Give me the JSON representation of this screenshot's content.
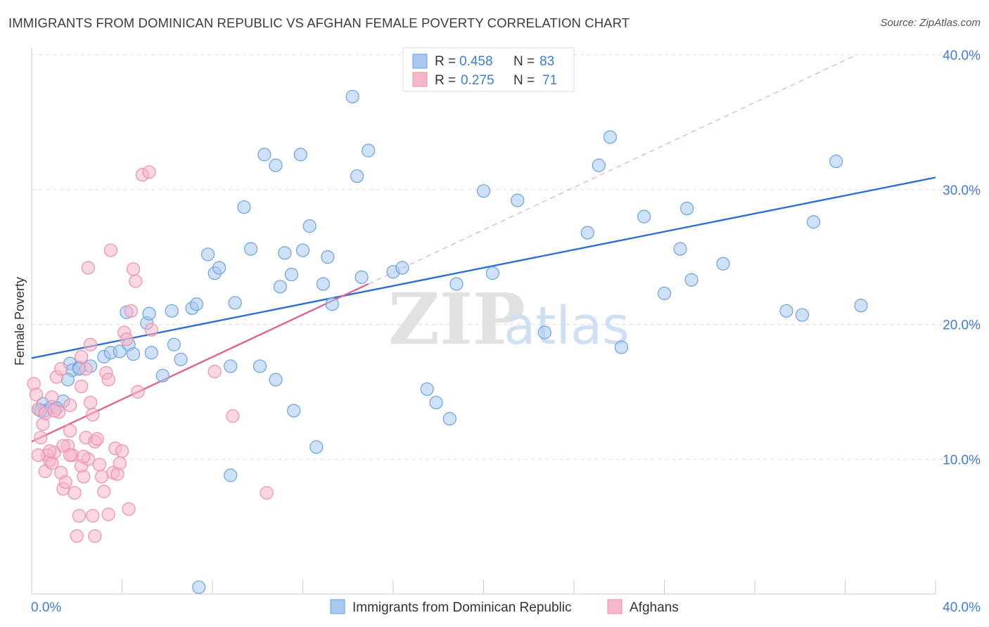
{
  "title": "IMMIGRANTS FROM DOMINICAN REPUBLIC VS AFGHAN FEMALE POVERTY CORRELATION CHART",
  "source": "Source: ZipAtlas.com",
  "watermark": {
    "zip": "ZIP",
    "atlas": "atlas"
  },
  "legend_top": [
    {
      "r_label": "R = ",
      "r_value": "0.458",
      "n_label": "N = ",
      "n_value": "83",
      "color": "#a8c8f0"
    },
    {
      "r_label": "R = ",
      "r_value": "0.275",
      "n_label": "N = ",
      "n_value": "71",
      "color": "#f7b7cb"
    }
  ],
  "legend_bottom": [
    {
      "label": "Immigrants from Dominican Republic",
      "color": "#a8c8f0"
    },
    {
      "label": "Afghans",
      "color": "#f7b7cb"
    }
  ],
  "chart_data": {
    "type": "scatter",
    "title": "IMMIGRANTS FROM DOMINICAN REPUBLIC VS AFGHAN FEMALE POVERTY CORRELATION CHART",
    "xlabel": "",
    "ylabel": "Female Poverty",
    "xlim": [
      0,
      40
    ],
    "ylim": [
      0,
      40
    ],
    "x_tick_labels": [
      "0.0%",
      "40.0%"
    ],
    "y_ticks": [
      10,
      20,
      30,
      40
    ],
    "y_tick_labels": [
      "10.0%",
      "20.0%",
      "30.0%",
      "40.0%"
    ],
    "grid": true,
    "legend_placement": "top-center",
    "series": [
      {
        "name": "Immigrants from Dominican Republic",
        "color": "#6aa2e0",
        "fill": "#a8c8f0",
        "trend": {
          "x": [
            0,
            40
          ],
          "y": [
            17.5,
            30.9
          ],
          "color": "#2e6fcf"
        },
        "points": [
          [
            0.3,
            13.7
          ],
          [
            0.5,
            14.1
          ],
          [
            0.6,
            13.6
          ],
          [
            0.9,
            13.9
          ],
          [
            1.4,
            14.3
          ],
          [
            1.7,
            17.1
          ],
          [
            1.8,
            16.6
          ],
          [
            1.6,
            15.9
          ],
          [
            2.6,
            16.9
          ],
          [
            3.2,
            17.6
          ],
          [
            2.1,
            16.8
          ],
          [
            3.5,
            17.9
          ],
          [
            3.9,
            18.0
          ],
          [
            4.2,
            20.9
          ],
          [
            4.3,
            18.5
          ],
          [
            4.5,
            17.8
          ],
          [
            5.3,
            17.9
          ],
          [
            5.1,
            20.1
          ],
          [
            5.2,
            20.8
          ],
          [
            5.8,
            16.2
          ],
          [
            6.3,
            18.5
          ],
          [
            6.6,
            17.4
          ],
          [
            6.2,
            21.0
          ],
          [
            7.1,
            21.2
          ],
          [
            7.3,
            21.5
          ],
          [
            7.8,
            25.2
          ],
          [
            8.1,
            23.8
          ],
          [
            8.3,
            24.2
          ],
          [
            8.8,
            16.9
          ],
          [
            9.0,
            21.6
          ],
          [
            9.7,
            25.6
          ],
          [
            9.4,
            28.7
          ],
          [
            10.1,
            16.9
          ],
          [
            10.3,
            32.6
          ],
          [
            10.8,
            31.8
          ],
          [
            10.8,
            15.9
          ],
          [
            11.0,
            22.8
          ],
          [
            11.2,
            25.3
          ],
          [
            11.5,
            23.7
          ],
          [
            11.9,
            32.6
          ],
          [
            12.0,
            25.5
          ],
          [
            12.3,
            27.3
          ],
          [
            12.6,
            10.9
          ],
          [
            12.9,
            23.0
          ],
          [
            13.1,
            25.0
          ],
          [
            13.3,
            21.5
          ],
          [
            14.2,
            36.9
          ],
          [
            14.4,
            31.0
          ],
          [
            14.6,
            23.5
          ],
          [
            14.9,
            32.9
          ],
          [
            16.0,
            23.9
          ],
          [
            16.4,
            24.2
          ],
          [
            17.5,
            15.2
          ],
          [
            17.9,
            14.2
          ],
          [
            18.5,
            13.0
          ],
          [
            18.8,
            23.0
          ],
          [
            20.0,
            29.9
          ],
          [
            20.4,
            23.8
          ],
          [
            21.5,
            29.2
          ],
          [
            22.7,
            19.4
          ],
          [
            24.6,
            26.8
          ],
          [
            25.1,
            31.8
          ],
          [
            25.6,
            33.9
          ],
          [
            26.1,
            18.3
          ],
          [
            27.1,
            28.0
          ],
          [
            28.0,
            22.3
          ],
          [
            28.7,
            25.6
          ],
          [
            29.0,
            28.6
          ],
          [
            29.2,
            23.3
          ],
          [
            30.6,
            24.5
          ],
          [
            33.4,
            21.0
          ],
          [
            34.1,
            20.7
          ],
          [
            34.6,
            27.6
          ],
          [
            35.6,
            32.1
          ],
          [
            36.7,
            21.4
          ],
          [
            17.1,
            38.5
          ],
          [
            21.8,
            39.4
          ],
          [
            11.6,
            13.6
          ],
          [
            8.8,
            8.8
          ],
          [
            7.4,
            0.5
          ],
          [
            2.1,
            16.7
          ],
          [
            1.1,
            13.8
          ],
          [
            0.4,
            13.6
          ]
        ]
      },
      {
        "name": "Afghans",
        "color": "#ee8fae",
        "fill": "#f7b7cb",
        "trend": {
          "x": [
            0,
            14.9
          ],
          "y": [
            11.3,
            23.0
          ],
          "color": "#e0648f"
        },
        "trend_ext": {
          "x": [
            14.9,
            36.5
          ],
          "y": [
            23.0,
            40.0
          ],
          "color": "#e899b3"
        },
        "points": [
          [
            0.1,
            15.6
          ],
          [
            0.2,
            14.8
          ],
          [
            0.3,
            13.7
          ],
          [
            0.4,
            11.6
          ],
          [
            0.5,
            12.6
          ],
          [
            0.6,
            9.1
          ],
          [
            0.7,
            10.3
          ],
          [
            0.8,
            9.9
          ],
          [
            0.9,
            9.7
          ],
          [
            1.0,
            10.5
          ],
          [
            1.1,
            16.1
          ],
          [
            1.2,
            13.5
          ],
          [
            1.3,
            9.0
          ],
          [
            1.4,
            7.8
          ],
          [
            1.5,
            8.3
          ],
          [
            1.6,
            11.0
          ],
          [
            1.7,
            12.1
          ],
          [
            1.8,
            10.3
          ],
          [
            1.9,
            7.5
          ],
          [
            2.0,
            4.3
          ],
          [
            2.1,
            5.8
          ],
          [
            2.2,
            9.5
          ],
          [
            2.3,
            8.7
          ],
          [
            2.4,
            11.6
          ],
          [
            2.5,
            10.0
          ],
          [
            2.6,
            14.2
          ],
          [
            2.7,
            13.3
          ],
          [
            2.8,
            11.3
          ],
          [
            2.9,
            11.5
          ],
          [
            3.0,
            9.6
          ],
          [
            3.1,
            8.7
          ],
          [
            3.2,
            7.6
          ],
          [
            3.3,
            16.4
          ],
          [
            3.4,
            15.9
          ],
          [
            3.5,
            25.5
          ],
          [
            3.6,
            9.0
          ],
          [
            3.7,
            10.8
          ],
          [
            3.8,
            8.9
          ],
          [
            3.9,
            9.7
          ],
          [
            4.0,
            10.6
          ],
          [
            4.1,
            19.4
          ],
          [
            4.2,
            18.9
          ],
          [
            4.3,
            6.3
          ],
          [
            4.4,
            21.0
          ],
          [
            4.5,
            24.1
          ],
          [
            4.6,
            23.2
          ],
          [
            4.9,
            31.1
          ],
          [
            5.2,
            31.3
          ],
          [
            4.7,
            15.0
          ],
          [
            5.3,
            19.6
          ],
          [
            2.2,
            17.6
          ],
          [
            2.6,
            18.5
          ],
          [
            2.4,
            16.7
          ],
          [
            0.6,
            13.4
          ],
          [
            0.9,
            14.6
          ],
          [
            1.4,
            11.0
          ],
          [
            1.7,
            10.3
          ],
          [
            2.3,
            10.2
          ],
          [
            2.7,
            5.8
          ],
          [
            2.8,
            4.3
          ],
          [
            2.5,
            24.2
          ],
          [
            3.4,
            5.9
          ],
          [
            8.1,
            16.5
          ],
          [
            8.9,
            13.2
          ],
          [
            10.4,
            7.5
          ],
          [
            1.0,
            13.6
          ],
          [
            1.3,
            16.7
          ],
          [
            1.7,
            14.0
          ],
          [
            2.2,
            15.4
          ],
          [
            0.3,
            10.3
          ],
          [
            0.8,
            10.6
          ]
        ]
      }
    ]
  }
}
